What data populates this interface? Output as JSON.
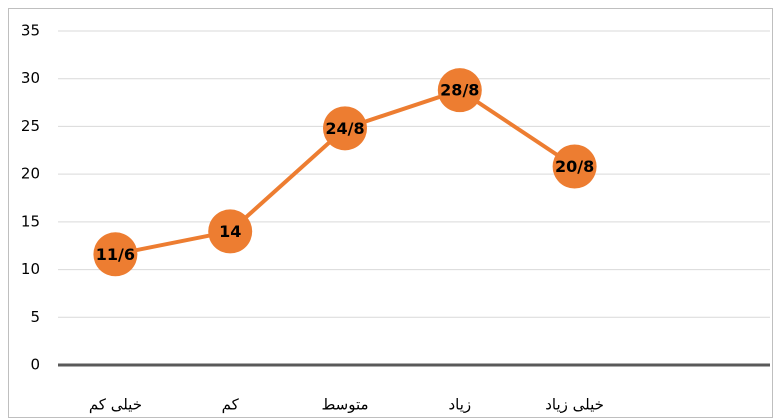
{
  "chart_data": {
    "type": "line",
    "categories": [
      "خیلی کم",
      "کم",
      "متوسط",
      "زیاد",
      "خیلی زیاد"
    ],
    "series": [
      {
        "name": null,
        "color": "#ED7D31",
        "values": [
          11.6,
          14,
          24.8,
          28.8,
          20.8
        ],
        "value_labels": [
          "11/6",
          "14",
          "24/8",
          "28/8",
          "20/8"
        ]
      }
    ],
    "ylim": [
      0,
      35
    ],
    "yticks": [
      0,
      5,
      10,
      15,
      20,
      25,
      30,
      35
    ],
    "grid": true
  }
}
